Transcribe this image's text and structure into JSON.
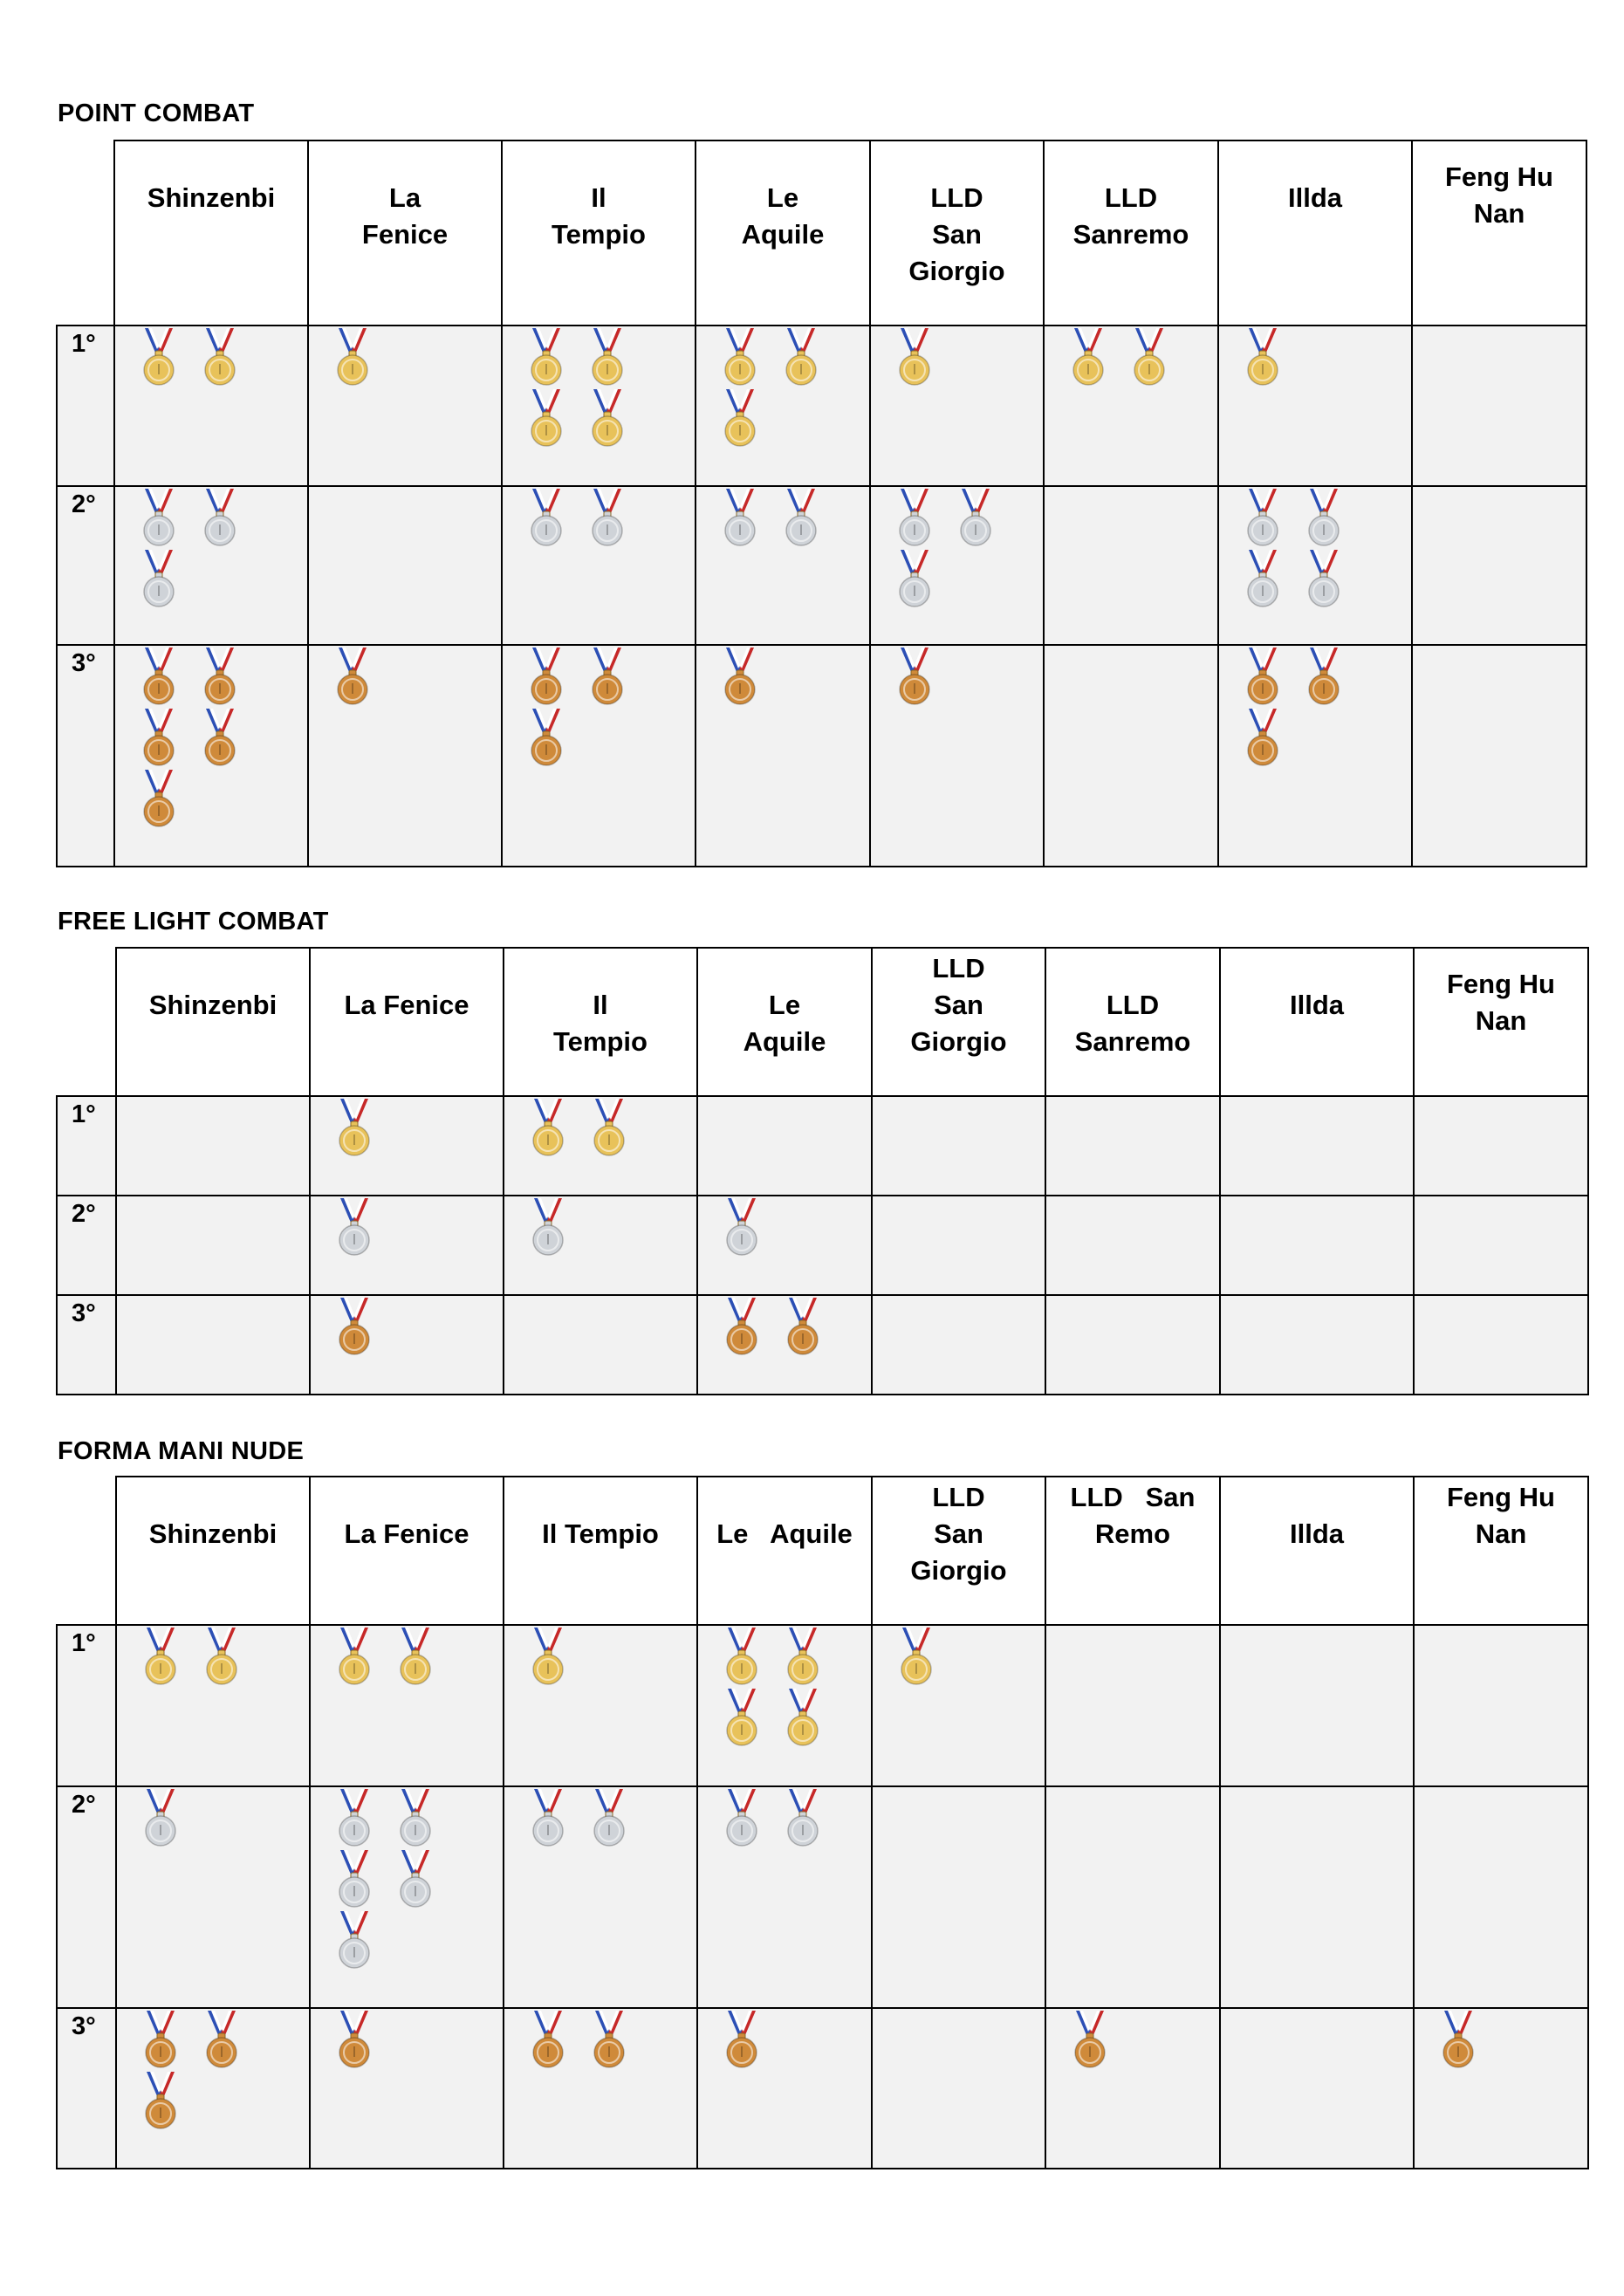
{
  "colors": {
    "gold": "#e8c25a",
    "silver": "#cfd3d8",
    "bronze": "#cf8a3a",
    "ribbon_red": "#c62828",
    "ribbon_blue": "#2c4fb5"
  },
  "sections": [
    {
      "title": "POINT COMBAT",
      "teams": [
        "Shinzenbi",
        "La\nFenice",
        "Il\nTempio",
        "Le\nAquile",
        "LLD\nSan\nGiorgio",
        "LLD\nSanremo",
        "Illda",
        "Feng Hu\nNan"
      ],
      "rows": [
        {
          "place": "1°",
          "medal": "gold",
          "counts": [
            2,
            1,
            4,
            3,
            1,
            2,
            1,
            0
          ]
        },
        {
          "place": "2°",
          "medal": "silver",
          "counts": [
            3,
            0,
            2,
            2,
            3,
            0,
            4,
            0
          ]
        },
        {
          "place": "3°",
          "medal": "bronze",
          "counts": [
            5,
            1,
            3,
            1,
            1,
            0,
            3,
            0
          ]
        }
      ]
    },
    {
      "title": "FREE LIGHT COMBAT",
      "teams": [
        "Shinzenbi",
        "La Fenice",
        "Il\nTempio",
        "Le\nAquile",
        "LLD\nSan\nGiorgio",
        "LLD\nSanremo",
        "Illda",
        "Feng Hu\nNan"
      ],
      "rows": [
        {
          "place": "1°",
          "medal": "gold",
          "counts": [
            0,
            1,
            2,
            0,
            0,
            0,
            0,
            0
          ]
        },
        {
          "place": "2°",
          "medal": "silver",
          "counts": [
            0,
            1,
            1,
            1,
            0,
            0,
            0,
            0
          ]
        },
        {
          "place": "3°",
          "medal": "bronze",
          "counts": [
            0,
            1,
            0,
            2,
            0,
            0,
            0,
            0
          ]
        }
      ]
    },
    {
      "title": "FORMA MANI NUDE",
      "teams": [
        "Shinzenbi",
        "La Fenice",
        "Il Tempio",
        "Le   Aquile",
        "LLD\nSan\nGiorgio",
        "LLD   San\nRemo",
        "Illda",
        "Feng Hu\nNan"
      ],
      "rows": [
        {
          "place": "1°",
          "medal": "gold",
          "counts": [
            2,
            2,
            1,
            4,
            1,
            0,
            0,
            0
          ]
        },
        {
          "place": "2°",
          "medal": "silver",
          "counts": [
            1,
            5,
            2,
            2,
            0,
            0,
            0,
            0
          ]
        },
        {
          "place": "3°",
          "medal": "bronze",
          "counts": [
            3,
            1,
            2,
            1,
            0,
            1,
            0,
            1
          ]
        }
      ]
    }
  ]
}
